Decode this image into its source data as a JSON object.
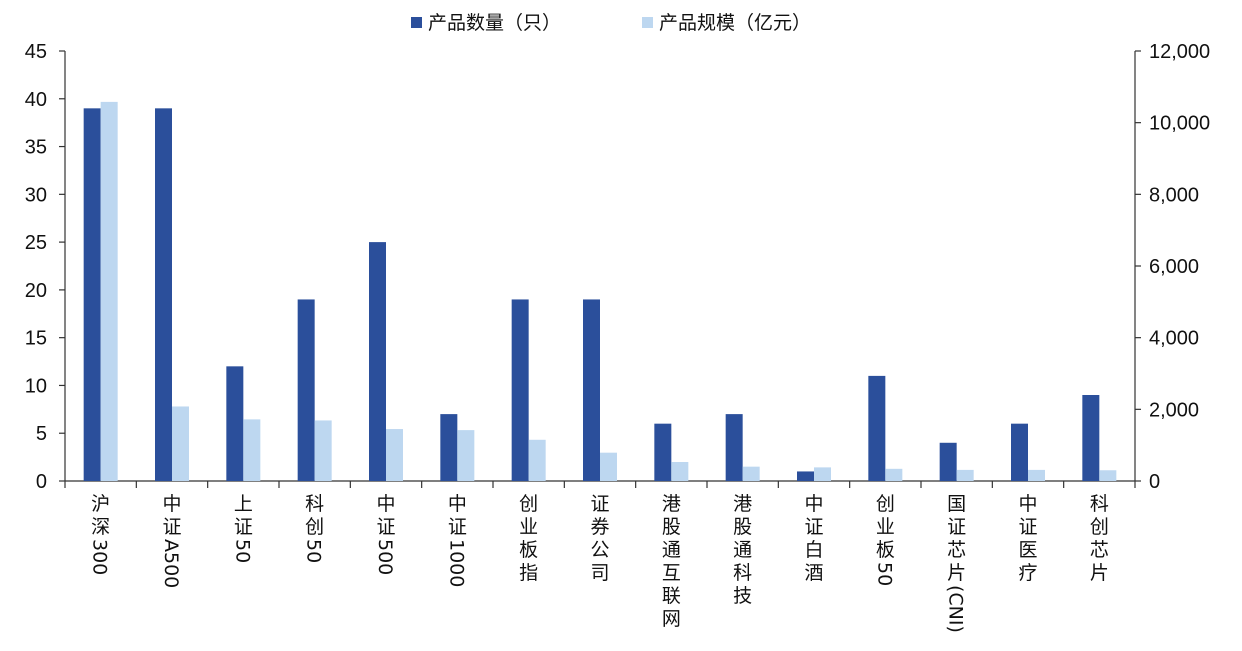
{
  "chart_data": {
    "type": "bar",
    "title": "",
    "categories": [
      "沪深300",
      "中证A500",
      "上证50",
      "科创50",
      "中证500",
      "中证1000",
      "创业板指",
      "证券公司",
      "港股通互联网",
      "港股通科技",
      "中证白酒",
      "创业板50",
      "国证芯片(CNI)",
      "中证医疗",
      "科创芯片"
    ],
    "series": [
      {
        "name": "产品数量（只）",
        "axis": "left",
        "color": "#2B4F9B",
        "values": [
          39,
          39,
          12,
          19,
          25,
          7,
          19,
          19,
          6,
          7,
          1,
          11,
          4,
          6,
          9
        ]
      },
      {
        "name": "产品规模（亿元）",
        "axis": "right",
        "color": "#BDD7F0",
        "values": [
          10580,
          2080,
          1720,
          1690,
          1450,
          1420,
          1150,
          790,
          530,
          400,
          380,
          340,
          310,
          310,
          300
        ]
      }
    ],
    "y_left": {
      "min": 0,
      "max": 45,
      "ticks": [
        "0",
        "5",
        "10",
        "15",
        "20",
        "25",
        "30",
        "35",
        "40",
        "45"
      ]
    },
    "y_right": {
      "min": 0,
      "max": 12000,
      "ticks": [
        "0",
        "2,000",
        "4,000",
        "6,000",
        "8,000",
        "10,000",
        "12,000"
      ]
    },
    "grid": false,
    "legend_position": "top"
  }
}
